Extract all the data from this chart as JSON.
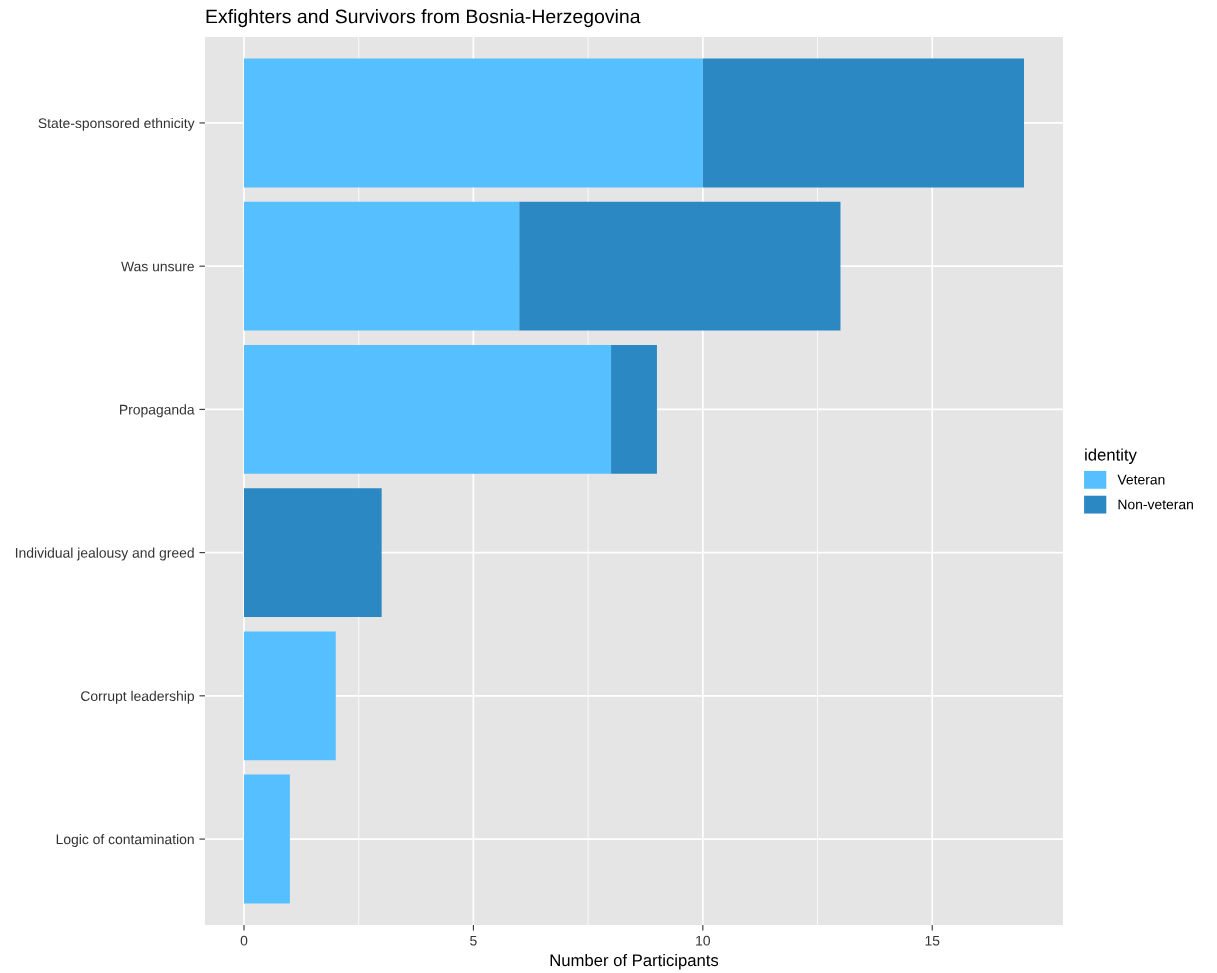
{
  "chart_data": {
    "type": "bar",
    "orientation": "horizontal",
    "stacked": true,
    "title": "Exfighters and Survivors from Bosnia-Herzegovina",
    "xlabel": "Number of Participants",
    "categories": [
      "State-sponsored ethnicity",
      "Was unsure",
      "Propaganda",
      "Individual jealousy and greed",
      "Corrupt leadership",
      "Logic of contamination"
    ],
    "series": [
      {
        "name": "Veteran",
        "color": "#56bfff",
        "values": [
          10,
          6,
          8,
          0,
          2,
          1
        ]
      },
      {
        "name": "Non-veteran",
        "color": "#2b88c3",
        "values": [
          7,
          7,
          1,
          3,
          0,
          0
        ]
      }
    ],
    "xlim": [
      -0.85,
      17.85
    ],
    "xticks": [
      0,
      5,
      10,
      15
    ],
    "grid": true,
    "legend": "right",
    "legend_title": "identity"
  }
}
